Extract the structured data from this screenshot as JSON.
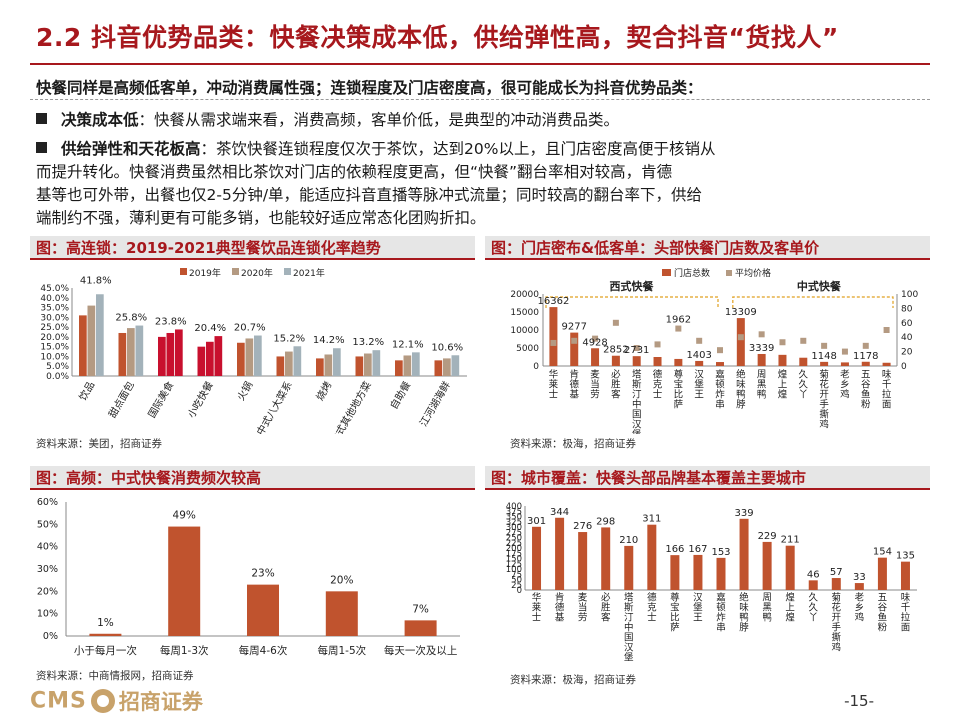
{
  "header": {
    "title": "2.2 抖音优势品类：快餐决策成本低，供给弹性高，契合抖音“货找人”",
    "lead": "快餐同样是高频低客单，冲动消费属性强；连锁程度及门店密度高，很可能成长为抖音优势品类："
  },
  "bullets": [
    {
      "term": "决策成本低",
      "text": "：快餐从需求端来看，消费高频，客单价低，是典型的冲动消费品类。"
    },
    {
      "term": "供给弹性和天花板高",
      "lines": [
        "：茶饮快餐连锁程度仅次于茶饮，达到20%以上，且门店密度高便于核销从",
        "而提升转化。快餐消费虽然相比茶饮对门店的依赖程度更高，但“快餐”翻台率相对较高，肯德",
        "基等也可外带，出餐也仅2-5分钟/单，能适应抖音直播等脉冲式流量；同时较高的翻台率下，供给",
        "端制约不强，薄利更有可能多销，也能较好适应常态化团购折扣。"
      ]
    }
  ],
  "panels": {
    "p1": {
      "title": "图：高连锁：2019-2021典型餐饮品连锁化率趋势",
      "source": "资料来源：美团，招商证券"
    },
    "p2": {
      "title": "图：门店密布&低客单：头部快餐门店数及客单价",
      "source": "资料来源：极海，招商证券"
    },
    "p3": {
      "title": "图：高频：中式快餐消费频次较高",
      "source": "资料来源：中商情报网，招商证券"
    },
    "p4": {
      "title": "图：城市覆盖：快餐头部品牌基本覆盖主要城市",
      "source": "资料来源：极海，招商证券"
    }
  },
  "footer": {
    "logo_text": "CMS",
    "logo_cn": "招商证券",
    "page": "-15-"
  },
  "colors": {
    "accent": "#a7181d",
    "bar": "#c0532e",
    "bar2019": "#c0532e",
    "bar2020": "#b49a82",
    "bar2021": "#a3b2ba",
    "highlight": "#c8102e",
    "marker": "#b49a82"
  },
  "chart_data": [
    {
      "type": "bar",
      "categories": [
        "饮品",
        "甜点面包",
        "国际美食",
        "小吃快餐",
        "火锅",
        "中式八大菜系",
        "烧烤",
        "中式其他地方菜",
        "自助餐",
        "江河湖海鲜"
      ],
      "series": [
        {
          "name": "2019年",
          "values": [
            31,
            22,
            20,
            15,
            17,
            10,
            9,
            10,
            8,
            8
          ]
        },
        {
          "name": "2020年",
          "values": [
            36,
            24.5,
            22,
            17.5,
            19.2,
            12.5,
            11,
            11.5,
            10.5,
            9
          ]
        },
        {
          "name": "2021年",
          "values": [
            41.8,
            25.8,
            23.8,
            20.4,
            20.7,
            15.2,
            14.2,
            13.2,
            12.1,
            10.6
          ]
        }
      ],
      "data_labels": [
        "41.8%",
        "25.8%",
        "23.8%",
        "20.4%",
        "20.7%",
        "15.2%",
        "14.2%",
        "13.2%",
        "12.1%",
        "10.6%"
      ],
      "highlight_categories": [
        "国际美食",
        "小吃快餐"
      ],
      "yticks": [
        "0.0%",
        "5.0%",
        "10.0%",
        "15.0%",
        "20.0%",
        "25.0%",
        "30.0%",
        "35.0%",
        "40.0%",
        "45.0%"
      ],
      "ylim": [
        0,
        45
      ],
      "legend_position": "top"
    },
    {
      "type": "bar",
      "categories": [
        "华莱士",
        "肯德基",
        "麦当劳",
        "必胜客",
        "塔斯汀中国汉堡",
        "德克士",
        "尊宝比萨",
        "汉堡王",
        "嘉顿炸串",
        "绝味鸭脖",
        "周黑鸭",
        "煌上煌",
        "久久丫",
        "菊花开手撕鸡",
        "老乡鸡",
        "五谷鱼粉",
        "味千拉面"
      ],
      "series": [
        {
          "name": "门店总数",
          "values": [
            16362,
            9277,
            4928,
            2852,
            2731,
            2500,
            1962,
            1403,
            1100,
            13309,
            3339,
            3100,
            2300,
            1148,
            1000,
            1178,
            900
          ]
        },
        {
          "name": "平均价格",
          "values": [
            32,
            35,
            38,
            60,
            25,
            30,
            52,
            35,
            22,
            40,
            44,
            33,
            35,
            28,
            20,
            28,
            50
          ]
        }
      ],
      "data_labels": [
        "16362",
        "9277",
        "4928",
        "2852",
        "2731",
        "1962",
        "1403",
        "13309",
        "3339",
        "1148",
        "1178"
      ],
      "group_labels": [
        "西式快餐",
        "中式快餐"
      ],
      "yticks_left": [
        "0",
        "5000",
        "10000",
        "15000",
        "20000"
      ],
      "yticks_right": [
        "0",
        "20",
        "40",
        "60",
        "80",
        "100"
      ],
      "ylim": [
        0,
        20000
      ],
      "y2lim": [
        0,
        100
      ],
      "legend_position": "top"
    },
    {
      "type": "bar",
      "categories": [
        "小于每月一次",
        "每周1-3次",
        "每周4-6次",
        "每周1-5次",
        "每天一次及以上"
      ],
      "values": [
        1,
        49,
        23,
        20,
        7
      ],
      "data_labels": [
        "1%",
        "49%",
        "23%",
        "20%",
        "7%"
      ],
      "yticks": [
        "0%",
        "10%",
        "20%",
        "30%",
        "40%",
        "50%",
        "60%"
      ],
      "ylim": [
        0,
        60
      ]
    },
    {
      "type": "bar",
      "categories": [
        "华莱士",
        "肯德基",
        "麦当劳",
        "必胜客",
        "塔斯汀中国汉堡",
        "德克士",
        "尊宝比萨",
        "汉堡王",
        "嘉顿炸串",
        "绝味鸭脖",
        "周黑鸭",
        "煌上煌",
        "久久丫",
        "菊花开手撕鸡",
        "老乡鸡",
        "五谷鱼粉",
        "味千拉面"
      ],
      "values": [
        301,
        344,
        276,
        298,
        210,
        311,
        166,
        167,
        153,
        339,
        229,
        211,
        46,
        57,
        33,
        154,
        135
      ],
      "data_labels": [
        "301",
        "344",
        "276",
        "298",
        "210",
        "311",
        "166",
        "167",
        "153",
        "339",
        "229",
        "211",
        "46",
        "57",
        "33",
        "154",
        "135"
      ],
      "yticks": [
        "0",
        "25",
        "50",
        "75",
        "100",
        "125",
        "150",
        "175",
        "200",
        "225",
        "250",
        "275",
        "300",
        "325",
        "350",
        "375",
        "400"
      ],
      "ylim": [
        0,
        400
      ]
    }
  ]
}
